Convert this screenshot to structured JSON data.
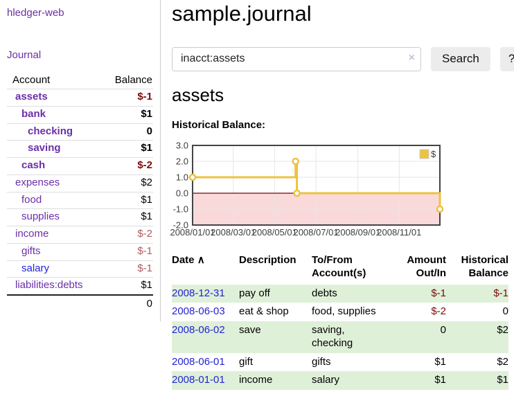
{
  "colors": {
    "purple": "#6a2fa8",
    "blue": "#2323d3",
    "negStrong": "#7b0c0c",
    "negMuted": "#b05c5c",
    "rowGreen": "#dff0d8"
  },
  "app": {
    "brand": "hledger-web",
    "nav_journal": "Journal"
  },
  "sidebar": {
    "table_headers": {
      "account": "Account",
      "balance": "Balance"
    },
    "accounts": [
      {
        "name": "assets",
        "indent": 1,
        "bold": true,
        "link": "purple",
        "balance": "$-1",
        "balance_style": "neg-strong"
      },
      {
        "name": "bank",
        "indent": 2,
        "bold": true,
        "link": "purple",
        "balance": "$1",
        "balance_style": "plain"
      },
      {
        "name": "checking",
        "indent": 3,
        "bold": true,
        "link": "purple",
        "balance": "0",
        "balance_style": "plain"
      },
      {
        "name": "saving",
        "indent": 3,
        "bold": true,
        "link": "purple",
        "balance": "$1",
        "balance_style": "plain"
      },
      {
        "name": "cash",
        "indent": 2,
        "bold": true,
        "link": "purple",
        "balance": "$-2",
        "balance_style": "neg-strong"
      },
      {
        "name": "expenses",
        "indent": 1,
        "bold": false,
        "link": "purple",
        "balance": "$2",
        "balance_style": "plain"
      },
      {
        "name": "food",
        "indent": 2,
        "bold": false,
        "link": "purple",
        "balance": "$1",
        "balance_style": "plain"
      },
      {
        "name": "supplies",
        "indent": 2,
        "bold": false,
        "link": "purple",
        "balance": "$1",
        "balance_style": "plain"
      },
      {
        "name": "income",
        "indent": 1,
        "bold": false,
        "link": "purple",
        "balance": "$-2",
        "balance_style": "neg"
      },
      {
        "name": "gifts",
        "indent": 2,
        "bold": false,
        "link": "purple",
        "balance": "$-1",
        "balance_style": "neg"
      },
      {
        "name": "salary",
        "indent": 2,
        "bold": false,
        "link": "blue",
        "balance": "$-1",
        "balance_style": "neg"
      },
      {
        "name": "liabilities:debts",
        "indent": 1,
        "bold": false,
        "link": "purple",
        "balance": "$1",
        "balance_style": "plain"
      }
    ],
    "total": "0"
  },
  "header": {
    "title": "sample.journal"
  },
  "search": {
    "value": "inacct:assets",
    "clear_icon": "×",
    "button": "Search",
    "help_button": "?"
  },
  "account_page": {
    "heading": "assets",
    "chart_title": "Historical Balance:"
  },
  "chart_data": {
    "type": "line",
    "style": "step",
    "title": "Historical Balance",
    "series": [
      {
        "name": "$",
        "color": "#edc240",
        "points": [
          [
            "2008-01-01",
            1
          ],
          [
            "2008-06-01",
            2
          ],
          [
            "2008-06-03",
            0
          ],
          [
            "2008-12-31",
            -1
          ]
        ]
      }
    ],
    "xlim": [
      "2008-01-01",
      "2008-12-31"
    ],
    "ylim": [
      -2,
      3
    ],
    "y_ticks": [
      3.0,
      2.0,
      1.0,
      0.0,
      -1.0,
      -2.0
    ],
    "x_ticks": [
      "2008/01/01",
      "2008/03/01",
      "2008/05/01",
      "2008/07/01",
      "2008/09/01",
      "2008/11/01"
    ],
    "grid": true,
    "grid_color": "#e6e6e6",
    "border_color": "#444444",
    "tick_label_color": "#3c3c3c",
    "negative_fill": "#f9d9d9",
    "zero_line_color": "#7a0000",
    "legend_position": "top-right"
  },
  "register": {
    "headers": {
      "date": "Date",
      "sort_icon": "∧",
      "description": "Description",
      "tofrom_line1": "To/From",
      "tofrom_line2": "Account(s)",
      "amount_line1": "Amount",
      "amount_line2": "Out/In",
      "balance_line1": "Historical",
      "balance_line2": "Balance"
    },
    "rows": [
      {
        "date": "2008-12-31",
        "description": "pay off",
        "accounts": "debts",
        "amount": "$-1",
        "amount_style": "neg",
        "balance": "$-1",
        "balance_style": "neg",
        "shaded": true
      },
      {
        "date": "2008-06-03",
        "description": "eat & shop",
        "accounts": "food, supplies",
        "amount": "$-2",
        "amount_style": "neg",
        "balance": "0",
        "balance_style": "plain",
        "shaded": false
      },
      {
        "date": "2008-06-02",
        "description": "save",
        "accounts": "saving, checking",
        "amount": "0",
        "amount_style": "plain",
        "balance": "$2",
        "balance_style": "plain",
        "shaded": true
      },
      {
        "date": "2008-06-01",
        "description": "gift",
        "accounts": "gifts",
        "amount": "$1",
        "amount_style": "plain",
        "balance": "$2",
        "balance_style": "plain",
        "shaded": false
      },
      {
        "date": "2008-01-01",
        "description": "income",
        "accounts": "salary",
        "amount": "$1",
        "amount_style": "plain",
        "balance": "$1",
        "balance_style": "plain",
        "shaded": true
      }
    ]
  }
}
